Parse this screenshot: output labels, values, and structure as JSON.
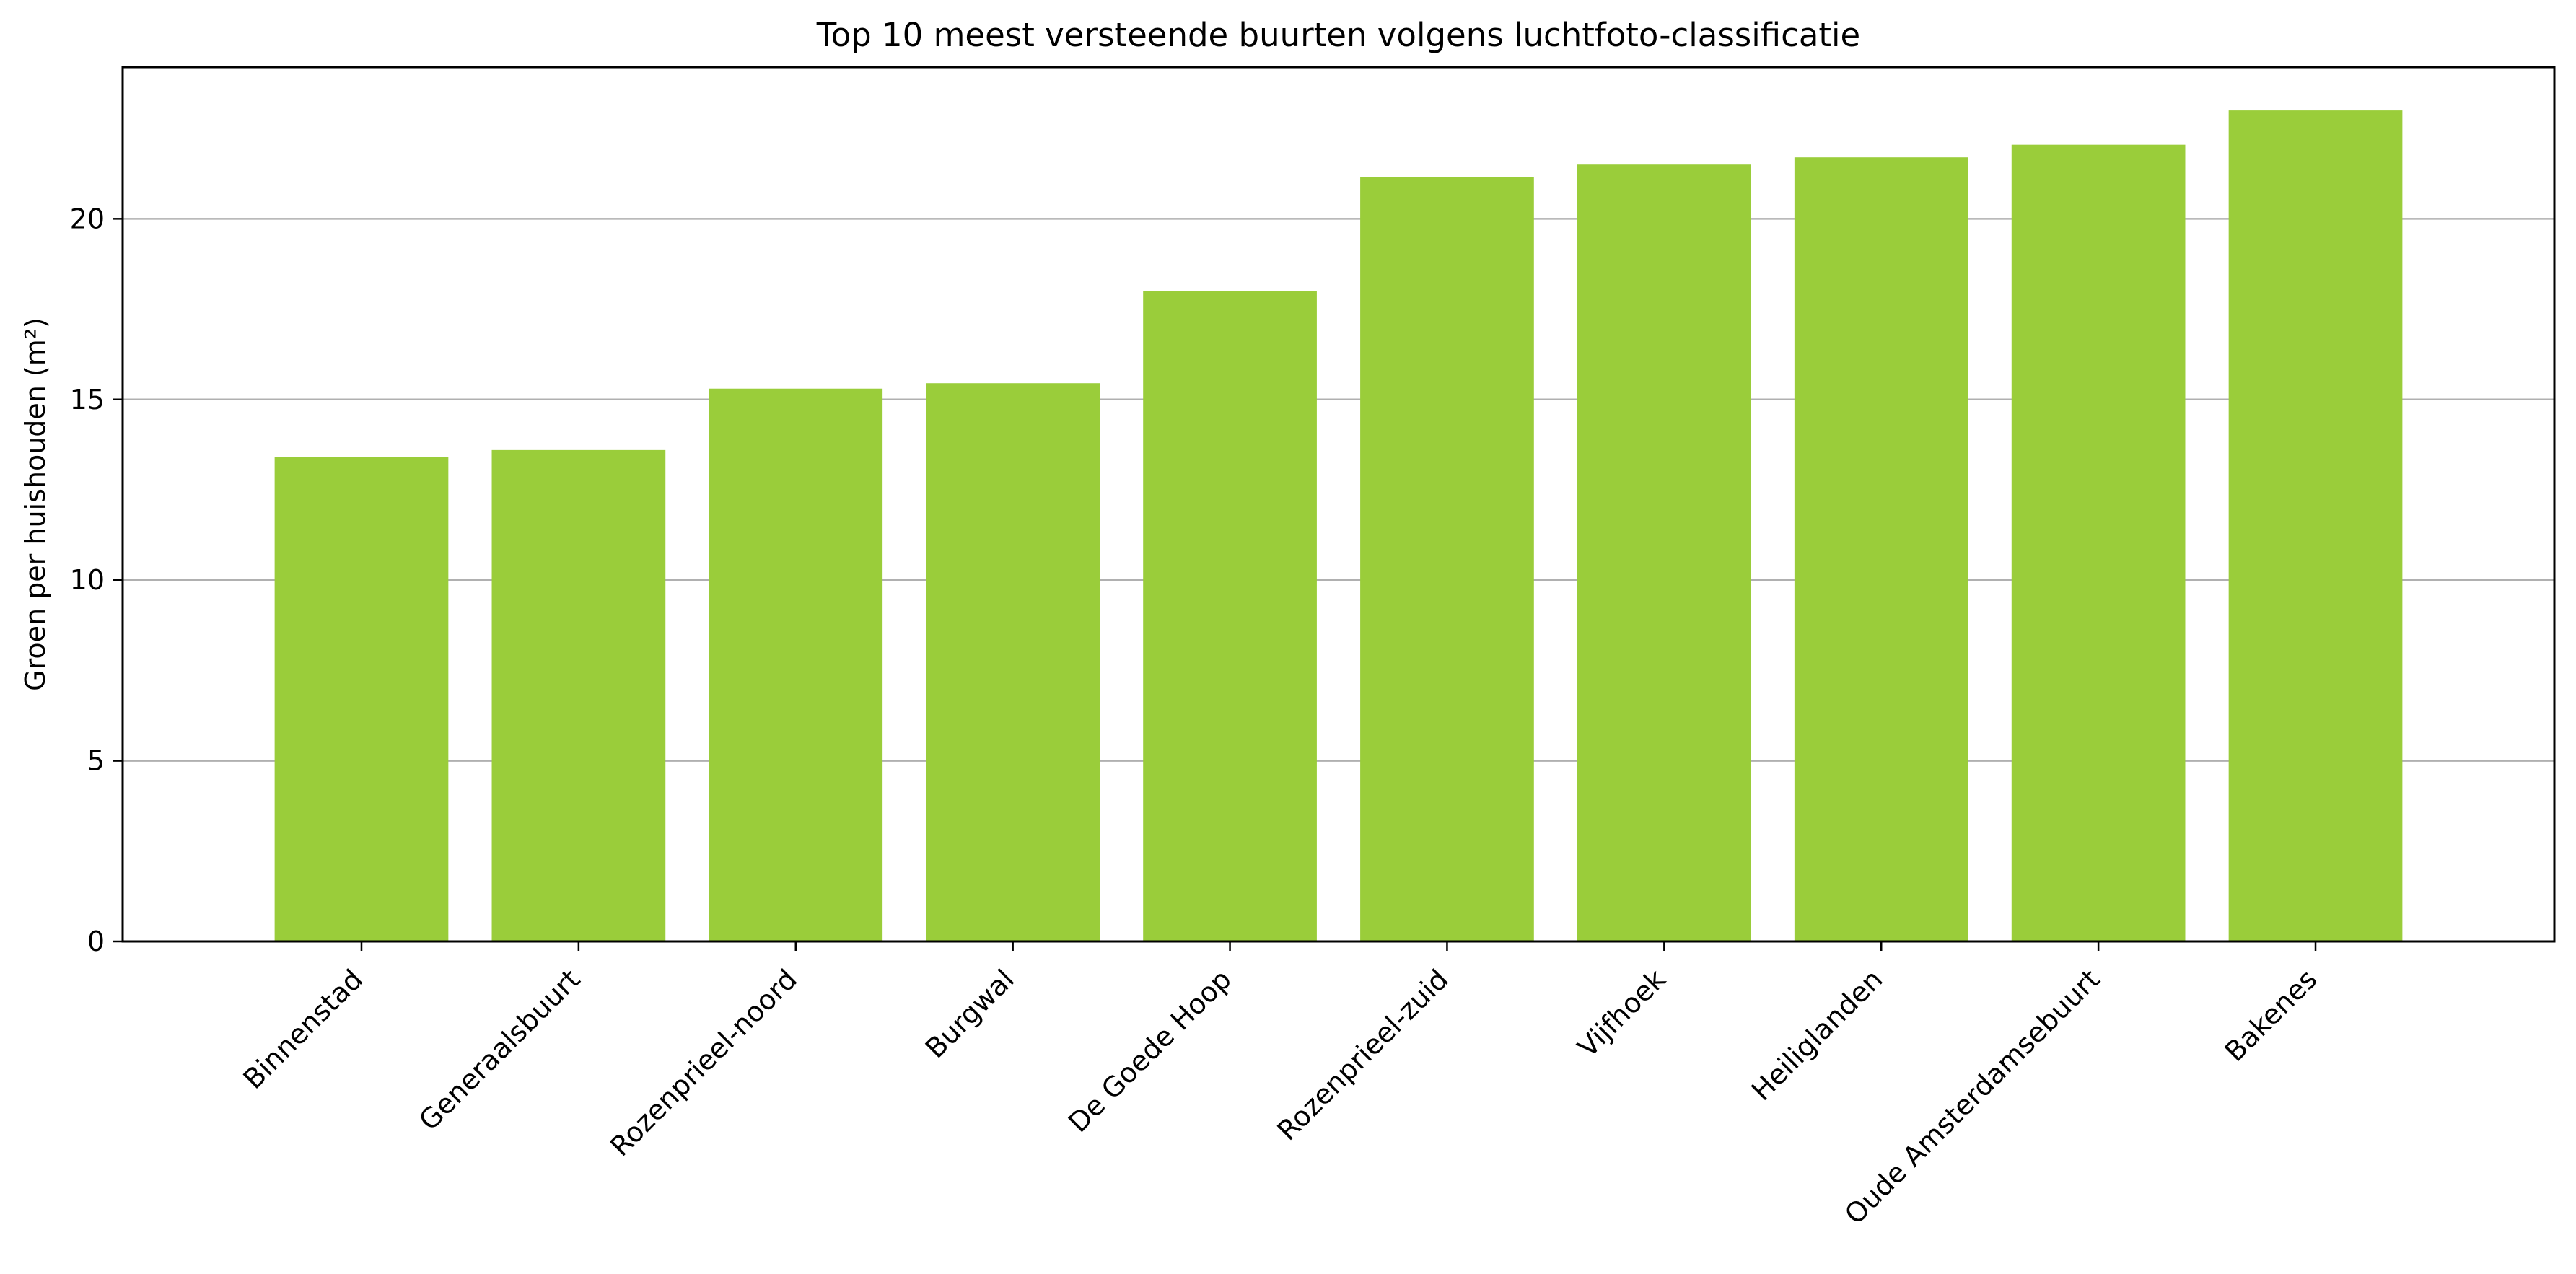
{
  "chart_data": {
    "type": "bar",
    "title": "Top 10 meest versteende buurten volgens luchtfoto-classificatie",
    "xlabel": "",
    "ylabel": "Groen per huishouden (m²)",
    "categories": [
      "Binnenstad",
      "Generaalsbuurt",
      "Rozenprieel-noord",
      "Burgwal",
      "De Goede Hoop",
      "Rozenprieel-zuid",
      "Vijfhoek",
      "Heiliglanden",
      "Oude Amsterdamsebuurt",
      "Bakenes"
    ],
    "values": [
      13.4,
      13.6,
      15.3,
      15.45,
      18.0,
      21.15,
      21.5,
      21.7,
      22.05,
      23.0
    ],
    "ylim": [
      0,
      24.2
    ],
    "yticks": [
      0,
      5,
      10,
      15,
      20
    ],
    "grid": "y",
    "legend": "none",
    "bar_color": "#9ACD3A",
    "grid_color": "#b0b0b0"
  }
}
